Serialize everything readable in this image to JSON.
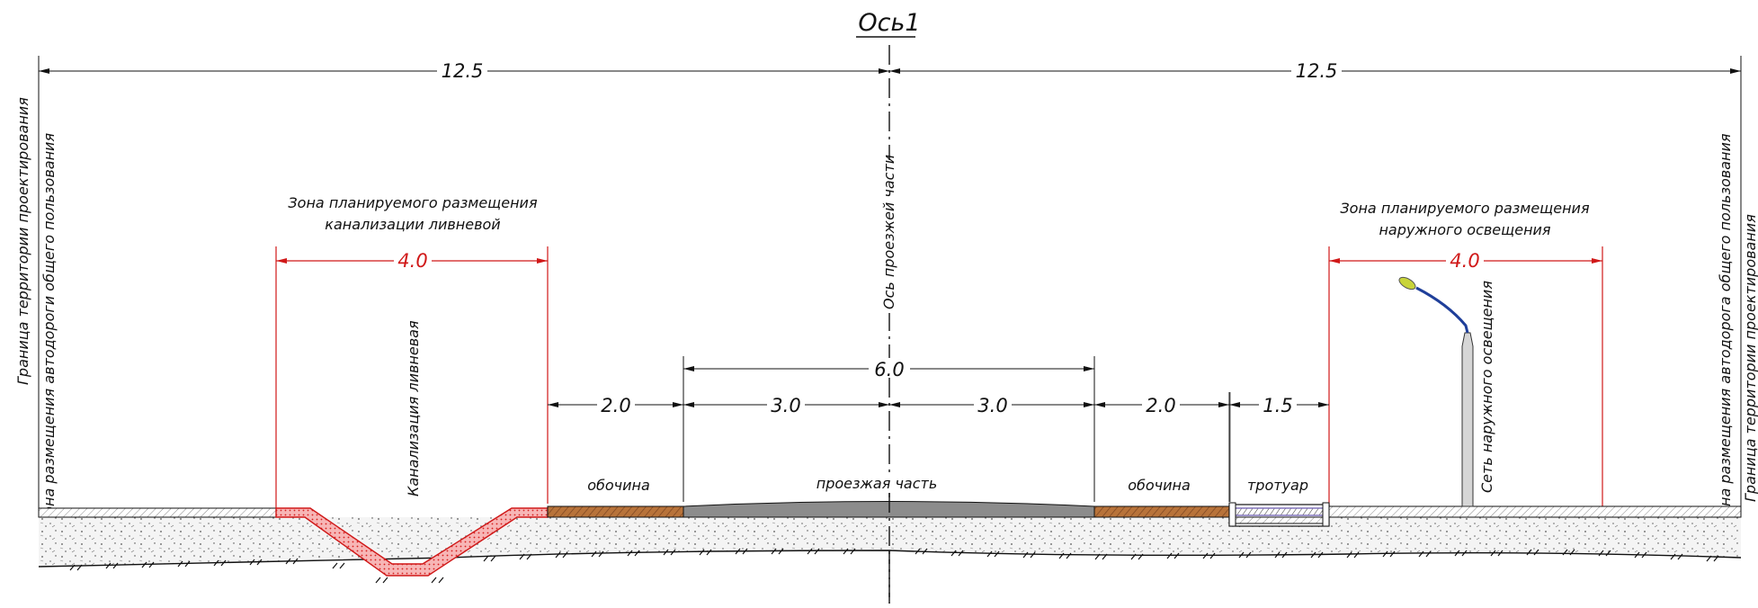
{
  "title": "Ось1",
  "dimensions": {
    "left_half": "12.5",
    "right_half": "12.5",
    "storm_zone_width": "4.0",
    "light_zone_width": "4.0",
    "carriageway_total": "6.0",
    "lane_left": "3.0",
    "lane_right": "3.0",
    "shoulder_left": "2.0",
    "shoulder_right": "2.0",
    "sidewalk": "1.5"
  },
  "labels": {
    "left_boundary_line1": "Граница территории проектирования",
    "left_boundary_line2": "Зона размещения  автодороги общего пользования",
    "right_boundary_line1": "Зона размещения  автодорога общего пользования",
    "right_boundary_line2": "Граница территории проектирования",
    "storm_zone_line1": "Зона планируемого размещения",
    "storm_zone_line2": "канализации ливневой",
    "storm_sewer": "Канализация ливневая",
    "axis_label": "Ось проезжей части",
    "shoulder_left": "обочина",
    "carriageway": "проезжая часть",
    "shoulder_right": "обочина",
    "sidewalk": "тротуар",
    "light_zone_line1": "Зона планируемого размещения",
    "light_zone_line2": "наружного освещения",
    "lighting_network": "Сеть наружного освещения"
  },
  "colors": {
    "zone_dimension": "#d01818",
    "ditch_fill": "#e84a4a",
    "shoulder_fill": "#a0622c",
    "carriageway_fill": "#8c8c8c",
    "sidewalk_fill": "#7a6bb8",
    "lamp_arm": "#1f3f9a",
    "lamp_head": "#c8d43a",
    "ground_fill": "#f2f2f2"
  }
}
